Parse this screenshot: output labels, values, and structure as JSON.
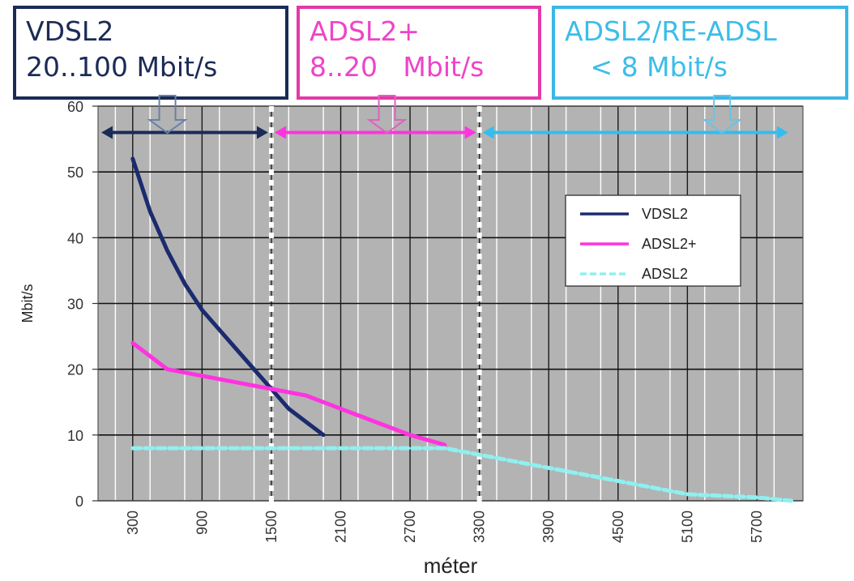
{
  "boxes": {
    "vdsl": {
      "line1": "VDSL2",
      "line2": "20..100 Mbit/s",
      "color": "#1b2b56"
    },
    "adsl2p": {
      "line1": "ADSL2+",
      "line2": "8..20   Mbit/s",
      "color": "#ee44c8"
    },
    "adsl2": {
      "line1": "ADSL2/RE-ADSL",
      "line2": "   < 8 Mbit/s",
      "color": "#3cbde9"
    }
  },
  "chart_data": {
    "type": "line",
    "xlabel": "méter",
    "ylabel": "Mbit/s",
    "ylim": [
      0,
      60
    ],
    "xlim": [
      0,
      6100
    ],
    "y_ticks": [
      "0",
      "10",
      "20",
      "30",
      "40",
      "50",
      "60"
    ],
    "x_ticks": [
      "300",
      "900",
      "1500",
      "2100",
      "2700",
      "3300",
      "3900",
      "4500",
      "5100",
      "5700"
    ],
    "x_tick_values": [
      300,
      900,
      1500,
      2100,
      2700,
      3300,
      3900,
      4500,
      5100,
      5700
    ],
    "grid": true,
    "plot_background": "#b3b3b3",
    "legend_position": "right",
    "series": [
      {
        "name": "VDSL2",
        "color": "#1b2b6e",
        "dash": false,
        "x": [
          300,
          450,
          600,
          750,
          900,
          1050,
          1200,
          1350,
          1500,
          1650,
          1800,
          1950
        ],
        "y": [
          52,
          44,
          38,
          33,
          29,
          26,
          23,
          20,
          17,
          14,
          12,
          10
        ]
      },
      {
        "name": "ADSL2+",
        "color": "#ff33e0",
        "dash": false,
        "x": [
          300,
          600,
          900,
          1200,
          1500,
          1800,
          2100,
          2400,
          2700,
          3000
        ],
        "y": [
          24,
          20,
          19,
          18,
          17,
          16,
          14,
          12,
          10,
          8.5
        ]
      },
      {
        "name": "ADSL2",
        "color": "#8ff0f0",
        "dash": true,
        "x": [
          300,
          900,
          1500,
          2100,
          2700,
          3000,
          3300,
          3900,
          4500,
          5100,
          5700,
          6000
        ],
        "y": [
          8,
          8,
          8,
          8,
          8,
          8,
          7,
          5,
          3,
          1,
          0.5,
          0
        ]
      }
    ],
    "separators": [
      {
        "x": 1500
      },
      {
        "x": 3300
      }
    ],
    "range_arrows": [
      {
        "from": 0,
        "to": 1500,
        "y": 56,
        "color": "#1b2b56"
      },
      {
        "from": 1500,
        "to": 3300,
        "y": 56,
        "color": "#ff33e0"
      },
      {
        "from": 3300,
        "to": 6000,
        "y": 56,
        "color": "#33bdf0"
      }
    ],
    "pointer_arrows": [
      {
        "x": 600,
        "color": "#6a7fa8"
      },
      {
        "x": 2500,
        "color": "#e060c0"
      },
      {
        "x": 5400,
        "color": "#66c4e6"
      }
    ]
  }
}
